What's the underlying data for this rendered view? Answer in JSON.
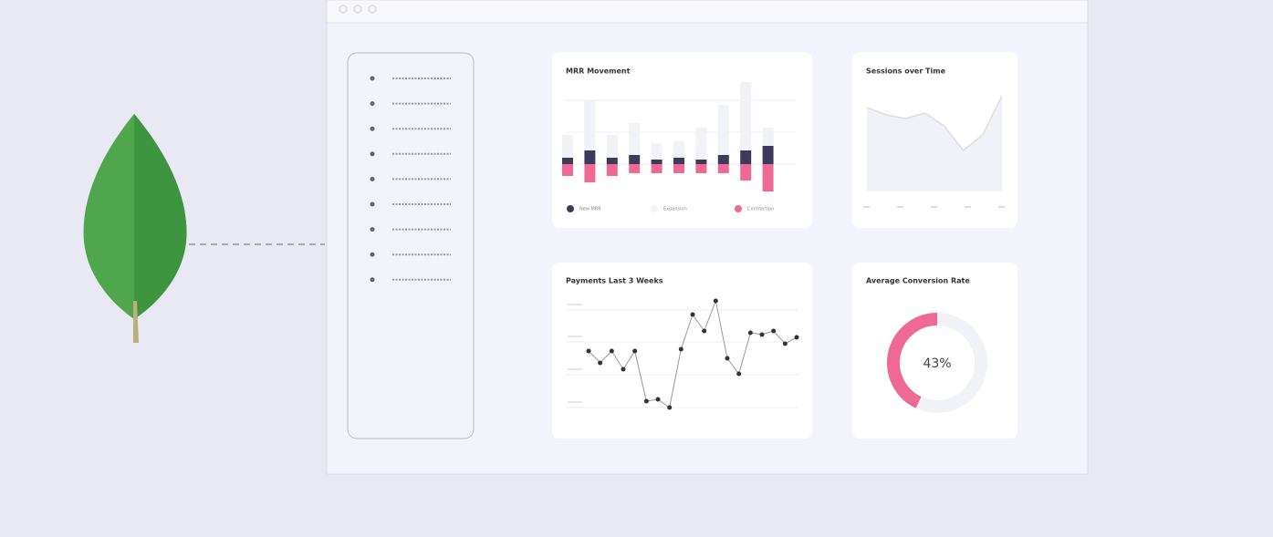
{
  "mrr": {
    "title": "MRR Movement",
    "legend": [
      "New MRR",
      "Expansion",
      "Contraction"
    ],
    "new_mrr": [
      7,
      15,
      7,
      10,
      5,
      7,
      5,
      10,
      15,
      20
    ],
    "expansion": [
      25,
      55,
      25,
      35,
      18,
      18,
      35,
      55,
      75,
      20
    ],
    "contraction": [
      13,
      20,
      13,
      10,
      10,
      10,
      10,
      10,
      18,
      30
    ]
  },
  "sessions": {
    "title": "Sessions over Time",
    "values": [
      92,
      84,
      80,
      86,
      72,
      45,
      62,
      105
    ]
  },
  "payments": {
    "title": "Payments Last 3 Weeks",
    "values": [
      75,
      62,
      75,
      55,
      75,
      20,
      22,
      13,
      77,
      115,
      97,
      130,
      67,
      50,
      95,
      93,
      97,
      83,
      90
    ]
  },
  "conversion": {
    "title": "Average Conversion Rate",
    "value": 43,
    "label": "43%"
  }
}
